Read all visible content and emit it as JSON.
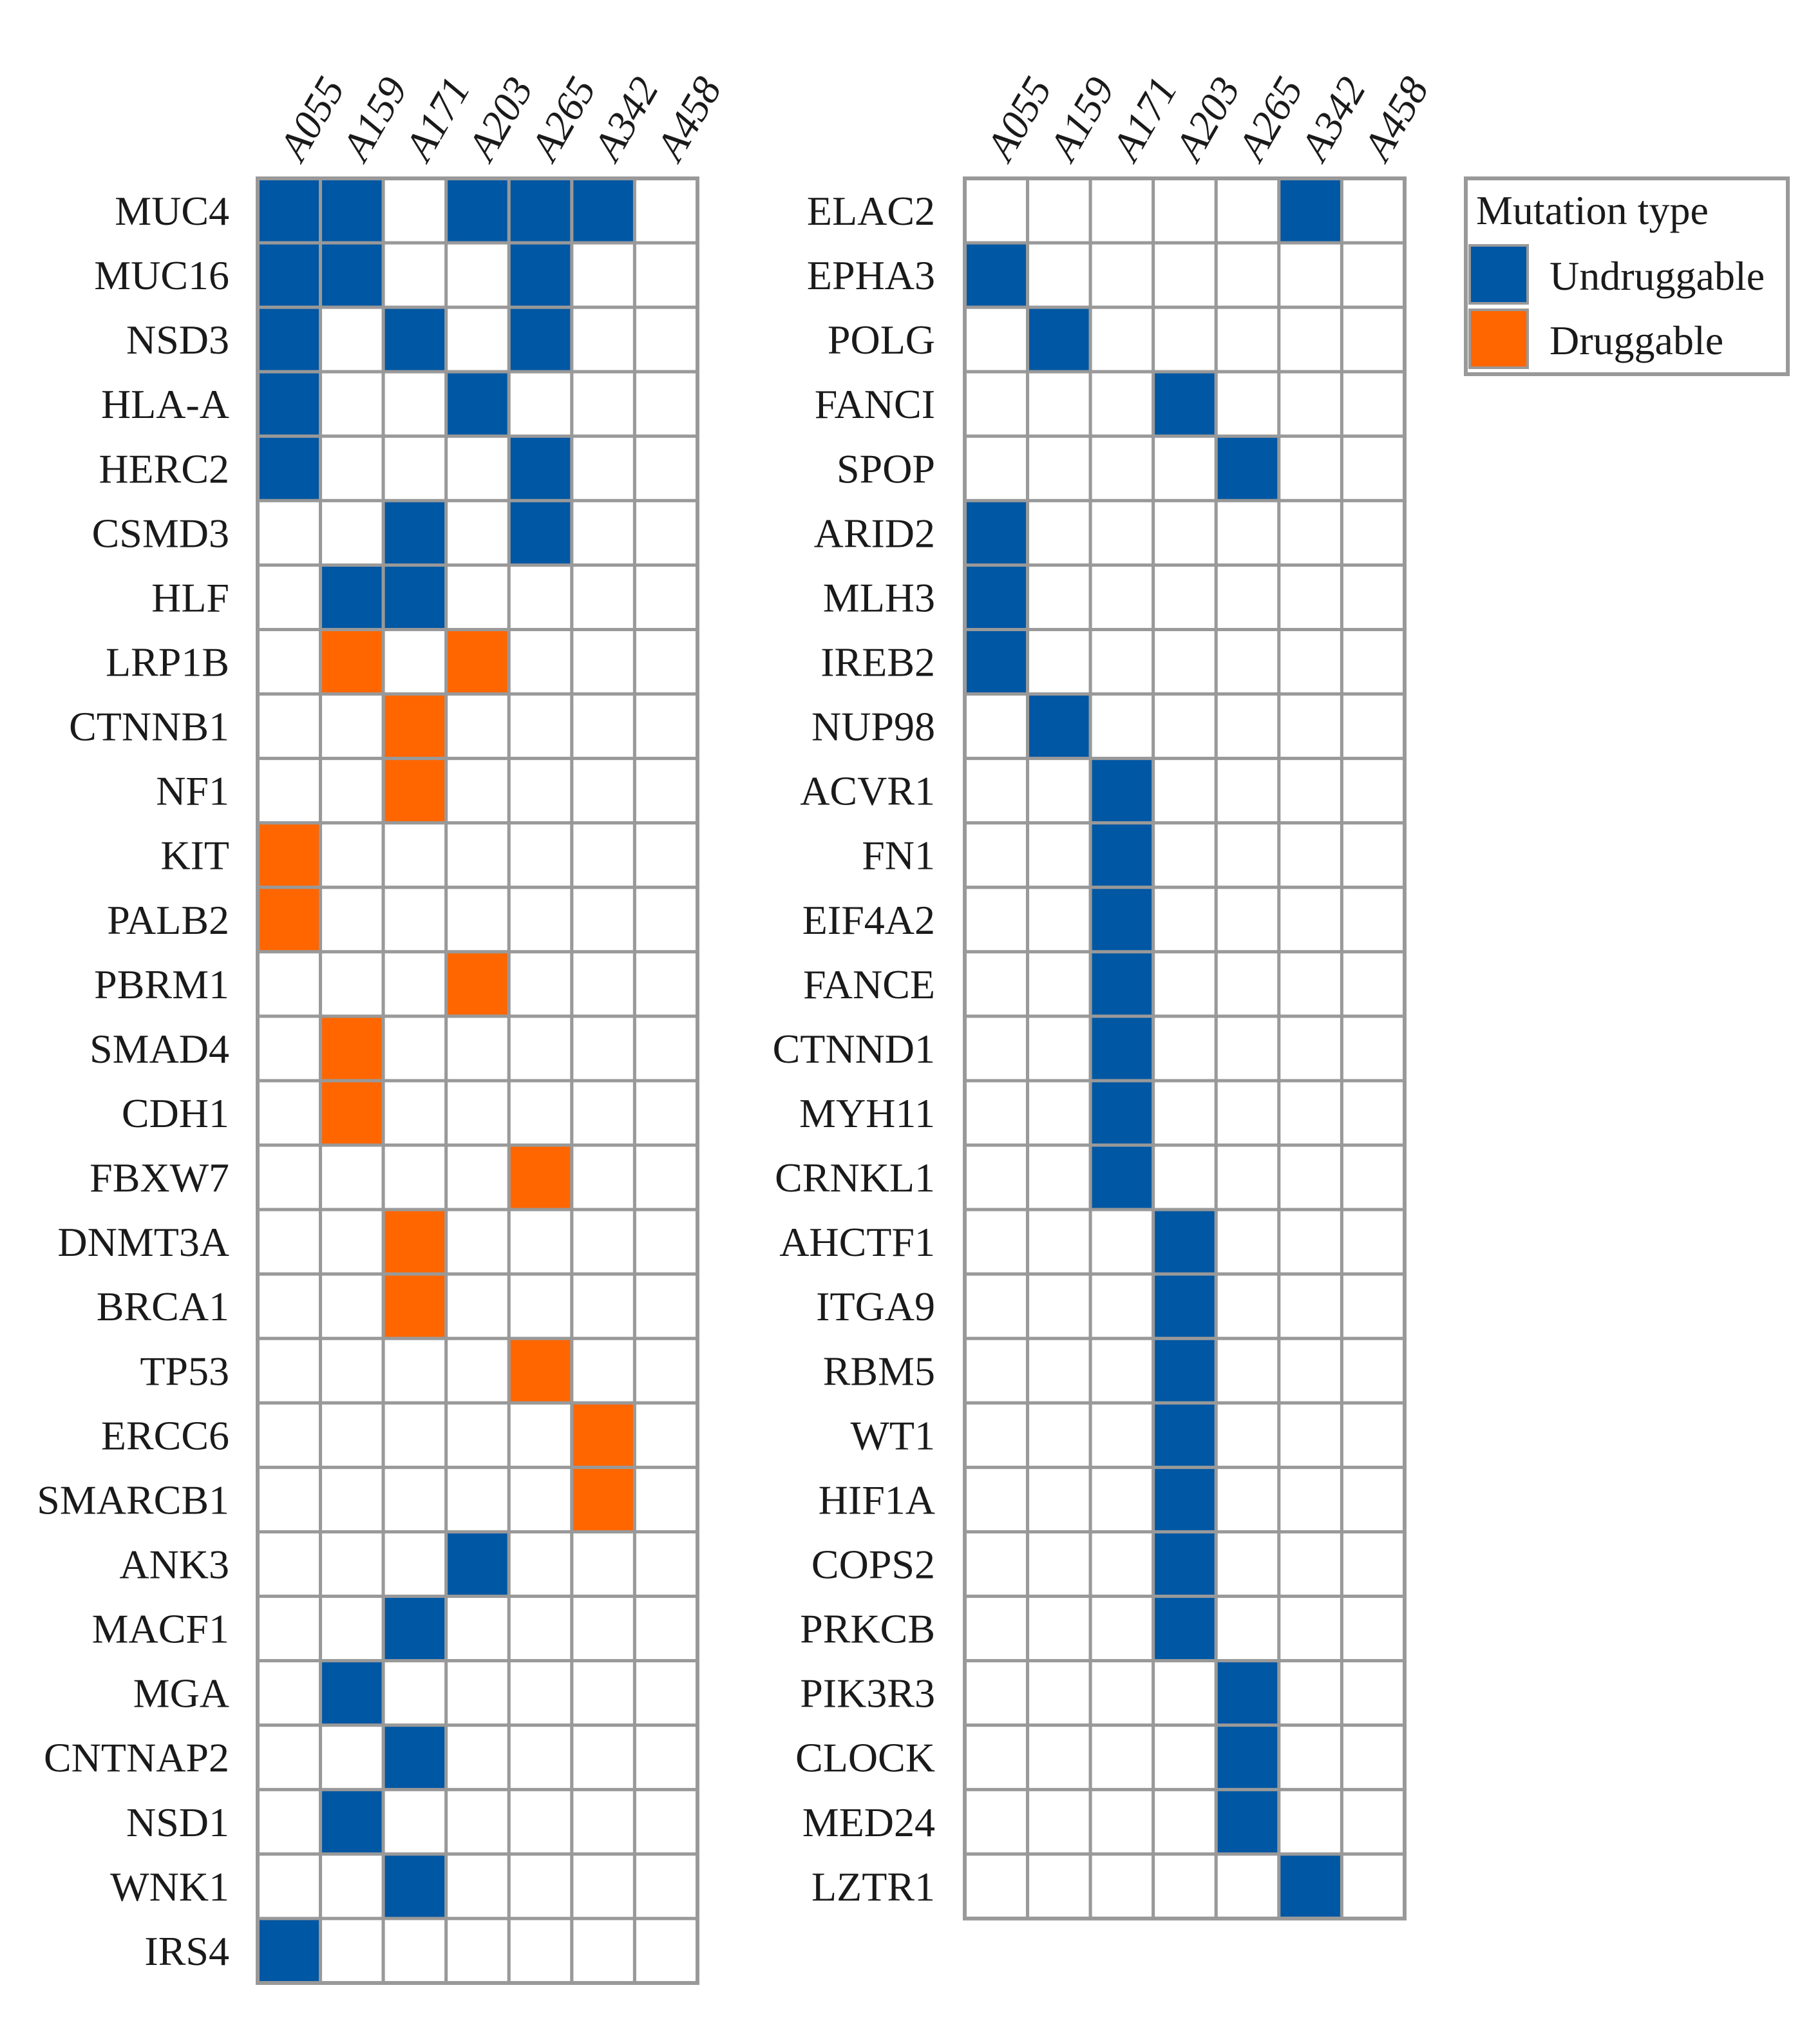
{
  "chart_data": {
    "type": "heatmap",
    "samples": [
      "A055",
      "A159",
      "A171",
      "A203",
      "A265",
      "A342",
      "A458"
    ],
    "colors": {
      "Undruggable": "#0057A3",
      "Druggable": "#FF6600",
      "empty": "#FFFFFF",
      "grid": "#999999"
    },
    "legend": {
      "title": "Mutation type",
      "entries": [
        "Undruggable",
        "Druggable"
      ],
      "placement": "top-right"
    },
    "panels": [
      {
        "genes": [
          "MUC4",
          "MUC16",
          "NSD3",
          "HLA-A",
          "HERC2",
          "CSMD3",
          "HLF",
          "LRP1B",
          "CTNNB1",
          "NF1",
          "KIT",
          "PALB2",
          "PBRM1",
          "SMAD4",
          "CDH1",
          "FBXW7",
          "DNMT3A",
          "BRCA1",
          "TP53",
          "ERCC6",
          "SMARCB1",
          "ANK3",
          "MACF1",
          "MGA",
          "CNTNAP2",
          "NSD1",
          "WNK1",
          "IRS4"
        ],
        "cells": [
          [
            "Undruggable",
            "Undruggable",
            "",
            "Undruggable",
            "Undruggable",
            "Undruggable",
            ""
          ],
          [
            "Undruggable",
            "Undruggable",
            "",
            "",
            "Undruggable",
            "",
            ""
          ],
          [
            "Undruggable",
            "",
            "Undruggable",
            "",
            "Undruggable",
            "",
            ""
          ],
          [
            "Undruggable",
            "",
            "",
            "Undruggable",
            "",
            "",
            ""
          ],
          [
            "Undruggable",
            "",
            "",
            "",
            "Undruggable",
            "",
            ""
          ],
          [
            "",
            "",
            "Undruggable",
            "",
            "Undruggable",
            "",
            ""
          ],
          [
            "",
            "Undruggable",
            "Undruggable",
            "",
            "",
            "",
            ""
          ],
          [
            "",
            "Druggable",
            "",
            "Druggable",
            "",
            "",
            ""
          ],
          [
            "",
            "",
            "Druggable",
            "",
            "",
            "",
            ""
          ],
          [
            "",
            "",
            "Druggable",
            "",
            "",
            "",
            ""
          ],
          [
            "Druggable",
            "",
            "",
            "",
            "",
            "",
            ""
          ],
          [
            "Druggable",
            "",
            "",
            "",
            "",
            "",
            ""
          ],
          [
            "",
            "",
            "",
            "Druggable",
            "",
            "",
            ""
          ],
          [
            "",
            "Druggable",
            "",
            "",
            "",
            "",
            ""
          ],
          [
            "",
            "Druggable",
            "",
            "",
            "",
            "",
            ""
          ],
          [
            "",
            "",
            "",
            "",
            "Druggable",
            "",
            ""
          ],
          [
            "",
            "",
            "Druggable",
            "",
            "",
            "",
            ""
          ],
          [
            "",
            "",
            "Druggable",
            "",
            "",
            "",
            ""
          ],
          [
            "",
            "",
            "",
            "",
            "Druggable",
            "",
            ""
          ],
          [
            "",
            "",
            "",
            "",
            "",
            "Druggable",
            ""
          ],
          [
            "",
            "",
            "",
            "",
            "",
            "Druggable",
            ""
          ],
          [
            "",
            "",
            "",
            "Undruggable",
            "",
            "",
            ""
          ],
          [
            "",
            "",
            "Undruggable",
            "",
            "",
            "",
            ""
          ],
          [
            "",
            "Undruggable",
            "",
            "",
            "",
            "",
            ""
          ],
          [
            "",
            "",
            "Undruggable",
            "",
            "",
            "",
            ""
          ],
          [
            "",
            "Undruggable",
            "",
            "",
            "",
            "",
            ""
          ],
          [
            "",
            "",
            "Undruggable",
            "",
            "",
            "",
            ""
          ],
          [
            "Undruggable",
            "",
            "",
            "",
            "",
            "",
            ""
          ]
        ]
      },
      {
        "genes": [
          "ELAC2",
          "EPHA3",
          "POLG",
          "FANCI",
          "SPOP",
          "ARID2",
          "MLH3",
          "IREB2",
          "NUP98",
          "ACVR1",
          "FN1",
          "EIF4A2",
          "FANCE",
          "CTNND1",
          "MYH11",
          "CRNKL1",
          "AHCTF1",
          "ITGA9",
          "RBM5",
          "WT1",
          "HIF1A",
          "COPS2",
          "PRKCB",
          "PIK3R3",
          "CLOCK",
          "MED24",
          "LZTR1"
        ],
        "cells": [
          [
            "",
            "",
            "",
            "",
            "",
            "Undruggable",
            ""
          ],
          [
            "Undruggable",
            "",
            "",
            "",
            "",
            "",
            ""
          ],
          [
            "",
            "Undruggable",
            "",
            "",
            "",
            "",
            ""
          ],
          [
            "",
            "",
            "",
            "Undruggable",
            "",
            "",
            ""
          ],
          [
            "",
            "",
            "",
            "",
            "Undruggable",
            "",
            ""
          ],
          [
            "Undruggable",
            "",
            "",
            "",
            "",
            "",
            ""
          ],
          [
            "Undruggable",
            "",
            "",
            "",
            "",
            "",
            ""
          ],
          [
            "Undruggable",
            "",
            "",
            "",
            "",
            "",
            ""
          ],
          [
            "",
            "Undruggable",
            "",
            "",
            "",
            "",
            ""
          ],
          [
            "",
            "",
            "Undruggable",
            "",
            "",
            "",
            ""
          ],
          [
            "",
            "",
            "Undruggable",
            "",
            "",
            "",
            ""
          ],
          [
            "",
            "",
            "Undruggable",
            "",
            "",
            "",
            ""
          ],
          [
            "",
            "",
            "Undruggable",
            "",
            "",
            "",
            ""
          ],
          [
            "",
            "",
            "Undruggable",
            "",
            "",
            "",
            ""
          ],
          [
            "",
            "",
            "Undruggable",
            "",
            "",
            "",
            ""
          ],
          [
            "",
            "",
            "Undruggable",
            "",
            "",
            "",
            ""
          ],
          [
            "",
            "",
            "",
            "Undruggable",
            "",
            "",
            ""
          ],
          [
            "",
            "",
            "",
            "Undruggable",
            "",
            "",
            ""
          ],
          [
            "",
            "",
            "",
            "Undruggable",
            "",
            "",
            ""
          ],
          [
            "",
            "",
            "",
            "Undruggable",
            "",
            "",
            ""
          ],
          [
            "",
            "",
            "",
            "Undruggable",
            "",
            "",
            ""
          ],
          [
            "",
            "",
            "",
            "Undruggable",
            "",
            "",
            ""
          ],
          [
            "",
            "",
            "",
            "Undruggable",
            "",
            "",
            ""
          ],
          [
            "",
            "",
            "",
            "",
            "Undruggable",
            "",
            ""
          ],
          [
            "",
            "",
            "",
            "",
            "Undruggable",
            "",
            ""
          ],
          [
            "",
            "",
            "",
            "",
            "Undruggable",
            "",
            ""
          ],
          [
            "",
            "",
            "",
            "",
            "",
            "Undruggable",
            ""
          ]
        ]
      }
    ]
  }
}
